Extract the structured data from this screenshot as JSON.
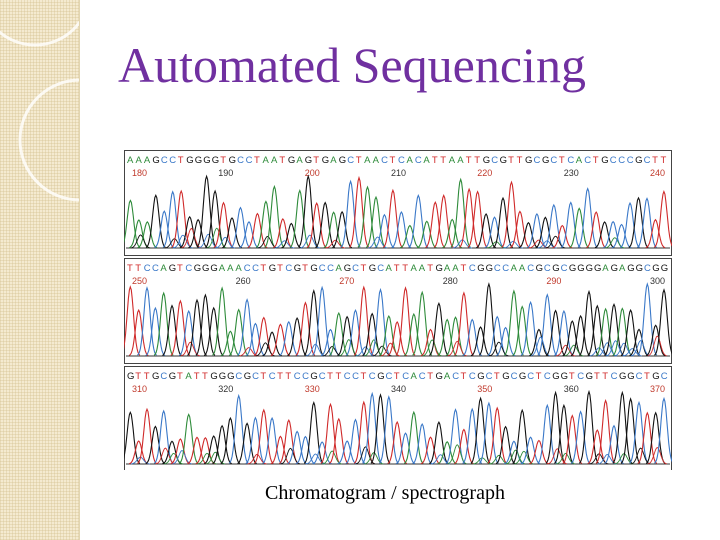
{
  "slide": {
    "title": "Automated Sequencing",
    "caption": "Chromatogram / spectrograph"
  },
  "chromatogram": {
    "rows": [
      {
        "sequence": "AAAGCCTGGGGTGCCTAATGAGTGAGCTAACTCACATTAATTGCGTTGCGCTCACTGCCCGCTT",
        "positions": [
          "180",
          "190",
          "200",
          "210",
          "220",
          "230",
          "240"
        ]
      },
      {
        "sequence": "TTCCAGTCGGGAAACCTGTCGTGCCAGCTGCATTAATGAATCGGCCAACGCGCGGGGAGAGGCGG",
        "positions": [
          "250",
          "260",
          "270",
          "280",
          "290",
          "300"
        ]
      },
      {
        "sequence": "GTTGCGTATTGGGCGCTCTTCCGCTTCCTCGCTCACTGACTCGCTGCGCTCGGTCGTTCGGCTGC",
        "positions": [
          "310",
          "320",
          "330",
          "340",
          "350",
          "360",
          "370"
        ]
      }
    ],
    "base_colors": {
      "A": "#2e8b3a",
      "C": "#3a78c8",
      "G": "#111111",
      "T": "#d02a2a"
    }
  }
}
